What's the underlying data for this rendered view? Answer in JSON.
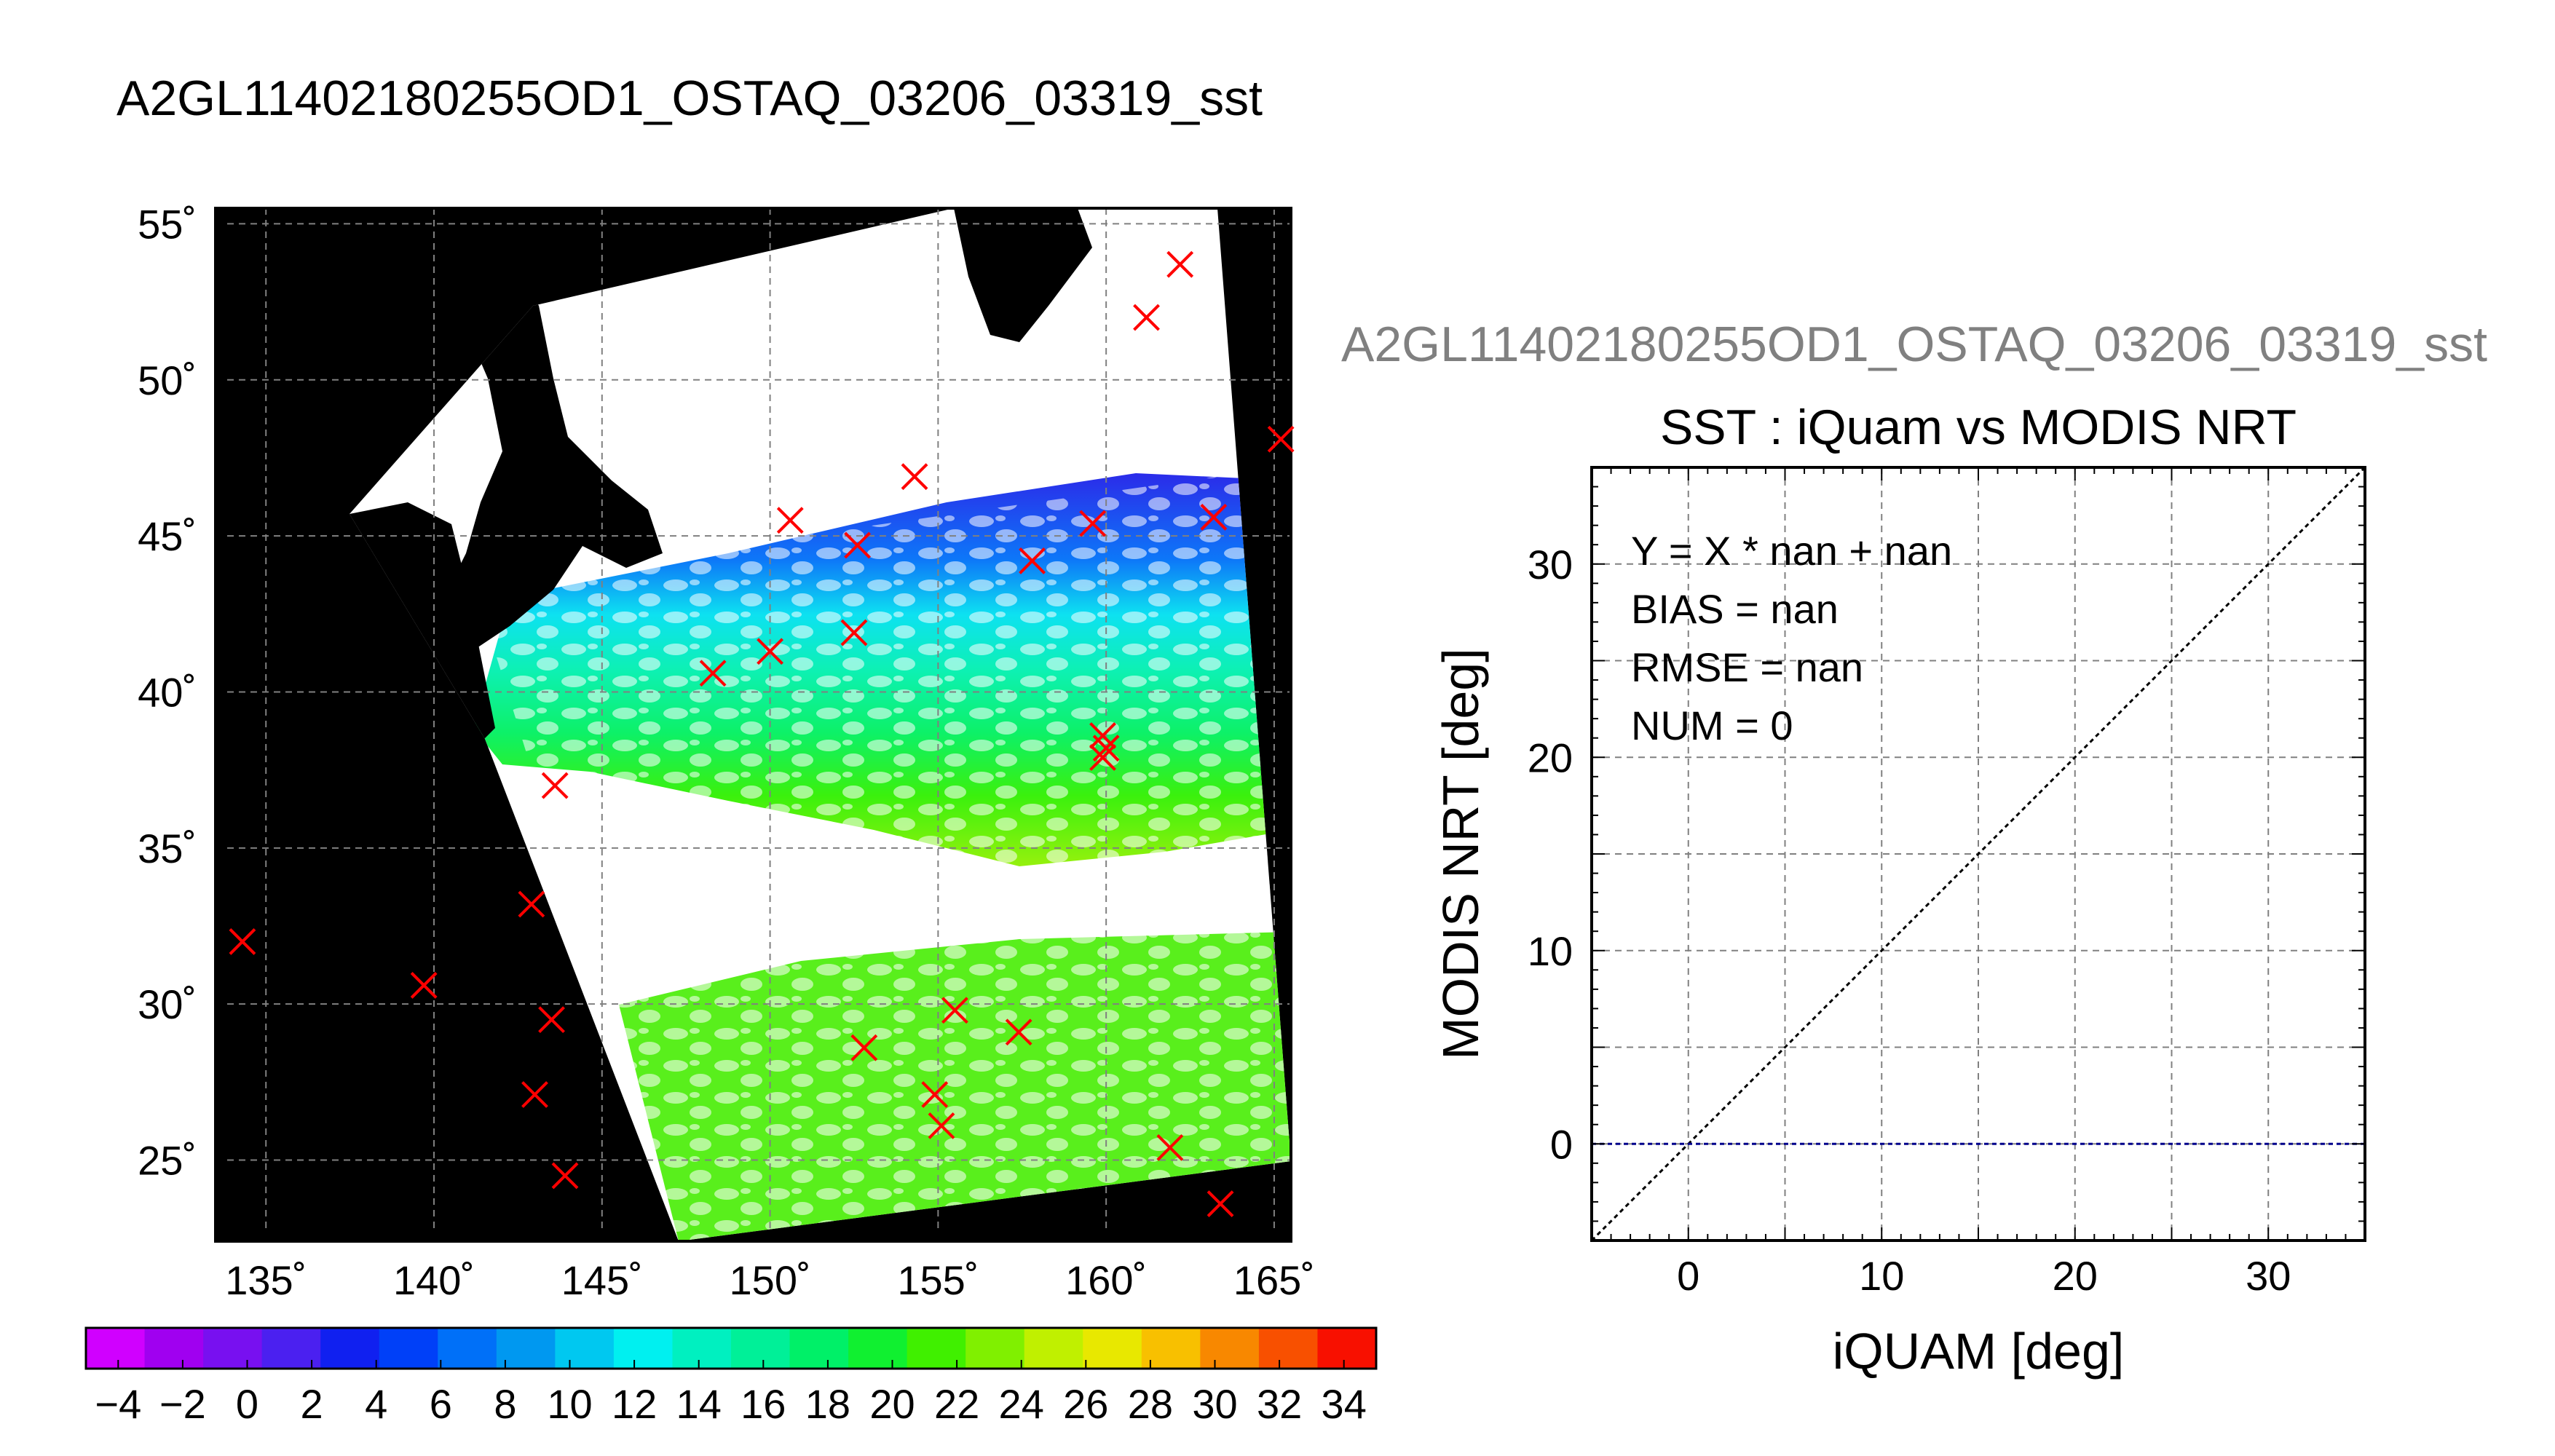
{
  "main_title": "A2GL11402180255OD1_OSTAQ_03206_03319_sst",
  "scatter_title": "A2GL11402180255OD1_OSTAQ_03206_03319_sst",
  "colors": {
    "land": "#000000",
    "cloud": "#ffffff",
    "match_marker": "#ff0000",
    "grid": "#808080",
    "one_to_one": "#000000",
    "fit_line": "#00008b"
  },
  "map": {
    "lon_ticks": [
      135,
      140,
      145,
      150,
      155,
      160,
      165
    ],
    "lon_labels": [
      "135˚",
      "140˚",
      "145˚",
      "150˚",
      "155˚",
      "160˚",
      "165˚"
    ],
    "lat_ticks": [
      25,
      30,
      35,
      40,
      45,
      50,
      55
    ],
    "lat_labels": [
      "25˚",
      "30˚",
      "35˚",
      "40˚",
      "45˚",
      "50˚",
      "55˚"
    ],
    "lon_range": [
      133.5,
      165.5
    ],
    "lat_range": [
      22.4,
      55.5
    ],
    "matchups": [
      {
        "lon": 162.2,
        "lat": 53.7
      },
      {
        "lon": 161.2,
        "lat": 52.0
      },
      {
        "lon": 165.2,
        "lat": 48.1
      },
      {
        "lon": 154.3,
        "lat": 46.9
      },
      {
        "lon": 163.2,
        "lat": 45.6
      },
      {
        "lon": 150.6,
        "lat": 45.5
      },
      {
        "lon": 159.6,
        "lat": 45.4
      },
      {
        "lon": 152.6,
        "lat": 44.7
      },
      {
        "lon": 157.8,
        "lat": 44.2
      },
      {
        "lon": 152.5,
        "lat": 41.9
      },
      {
        "lon": 150.0,
        "lat": 41.3
      },
      {
        "lon": 148.3,
        "lat": 40.6
      },
      {
        "lon": 159.9,
        "lat": 38.6
      },
      {
        "lon": 160.0,
        "lat": 38.2
      },
      {
        "lon": 159.9,
        "lat": 37.9
      },
      {
        "lon": 143.6,
        "lat": 37.0
      },
      {
        "lon": 134.3,
        "lat": 32.0
      },
      {
        "lon": 142.9,
        "lat": 33.2
      },
      {
        "lon": 139.7,
        "lat": 30.6
      },
      {
        "lon": 155.5,
        "lat": 29.8
      },
      {
        "lon": 157.4,
        "lat": 29.1
      },
      {
        "lon": 143.5,
        "lat": 29.5
      },
      {
        "lon": 152.8,
        "lat": 28.6
      },
      {
        "lon": 154.9,
        "lat": 27.1
      },
      {
        "lon": 143.0,
        "lat": 27.1
      },
      {
        "lon": 155.1,
        "lat": 26.1
      },
      {
        "lon": 161.9,
        "lat": 25.4
      },
      {
        "lon": 143.9,
        "lat": 24.5
      },
      {
        "lon": 163.4,
        "lat": 23.6
      }
    ]
  },
  "colorbar": {
    "min": -5,
    "max": 35,
    "step": 2,
    "tick_values": [
      -4,
      -2,
      0,
      2,
      4,
      6,
      8,
      10,
      12,
      14,
      16,
      18,
      20,
      22,
      24,
      26,
      28,
      30,
      32,
      34
    ],
    "tick_labels": [
      "−4",
      "−2",
      "0",
      "2",
      "4",
      "6",
      "8",
      "10",
      "12",
      "14",
      "16",
      "18",
      "20",
      "22",
      "24",
      "26",
      "28",
      "30",
      "32",
      "34"
    ],
    "colors": [
      "#d000ff",
      "#a000f0",
      "#7810f0",
      "#4b20f0",
      "#1020f0",
      "#0040f8",
      "#0070f8",
      "#0098f0",
      "#00c8f0",
      "#00f0f0",
      "#00f0c0",
      "#00f098",
      "#00f068",
      "#10f030",
      "#40f000",
      "#80f000",
      "#c0f000",
      "#e8e800",
      "#f8c000",
      "#f88800",
      "#f85000",
      "#f81000"
    ]
  },
  "scatter_panel": {
    "subtitle": "SST : iQuam vs MODIS NRT",
    "xlabel": "iQUAM [deg]",
    "ylabel": "MODIS NRT [deg]",
    "xlim": [
      -5,
      35
    ],
    "ylim": [
      -5,
      35
    ],
    "x_ticks": [
      0,
      10,
      20,
      30
    ],
    "y_ticks": [
      0,
      10,
      20,
      30
    ],
    "x_tick_labels": [
      "0",
      "10",
      "20",
      "30"
    ],
    "y_tick_labels": [
      "0",
      "10",
      "20",
      "30"
    ],
    "stats": [
      "Y = X * nan + nan",
      "BIAS = nan",
      "RMSE = nan",
      "NUM = 0"
    ]
  },
  "chart_data": [
    {
      "type": "heatmap",
      "title": "A2GL11402180255OD1_OSTAQ_03206_03319_sst",
      "xlabel": "",
      "ylabel": "",
      "xlim": [
        133.5,
        165.5
      ],
      "ylim": [
        22.4,
        55.5
      ],
      "grid": true,
      "colorbar_range": [
        -5,
        35
      ]
    },
    {
      "type": "scatter",
      "title": "SST : iQuam vs MODIS NRT",
      "xlabel": "iQUAM [deg]",
      "ylabel": "MODIS NRT [deg]",
      "xlim": [
        -5,
        35
      ],
      "ylim": [
        -5,
        35
      ],
      "grid": true,
      "series": [
        {
          "x": [
            -5,
            35
          ],
          "y": [
            -5,
            35
          ]
        },
        {
          "x": [
            -5,
            35
          ],
          "y": [
            0,
            0
          ]
        }
      ]
    }
  ]
}
